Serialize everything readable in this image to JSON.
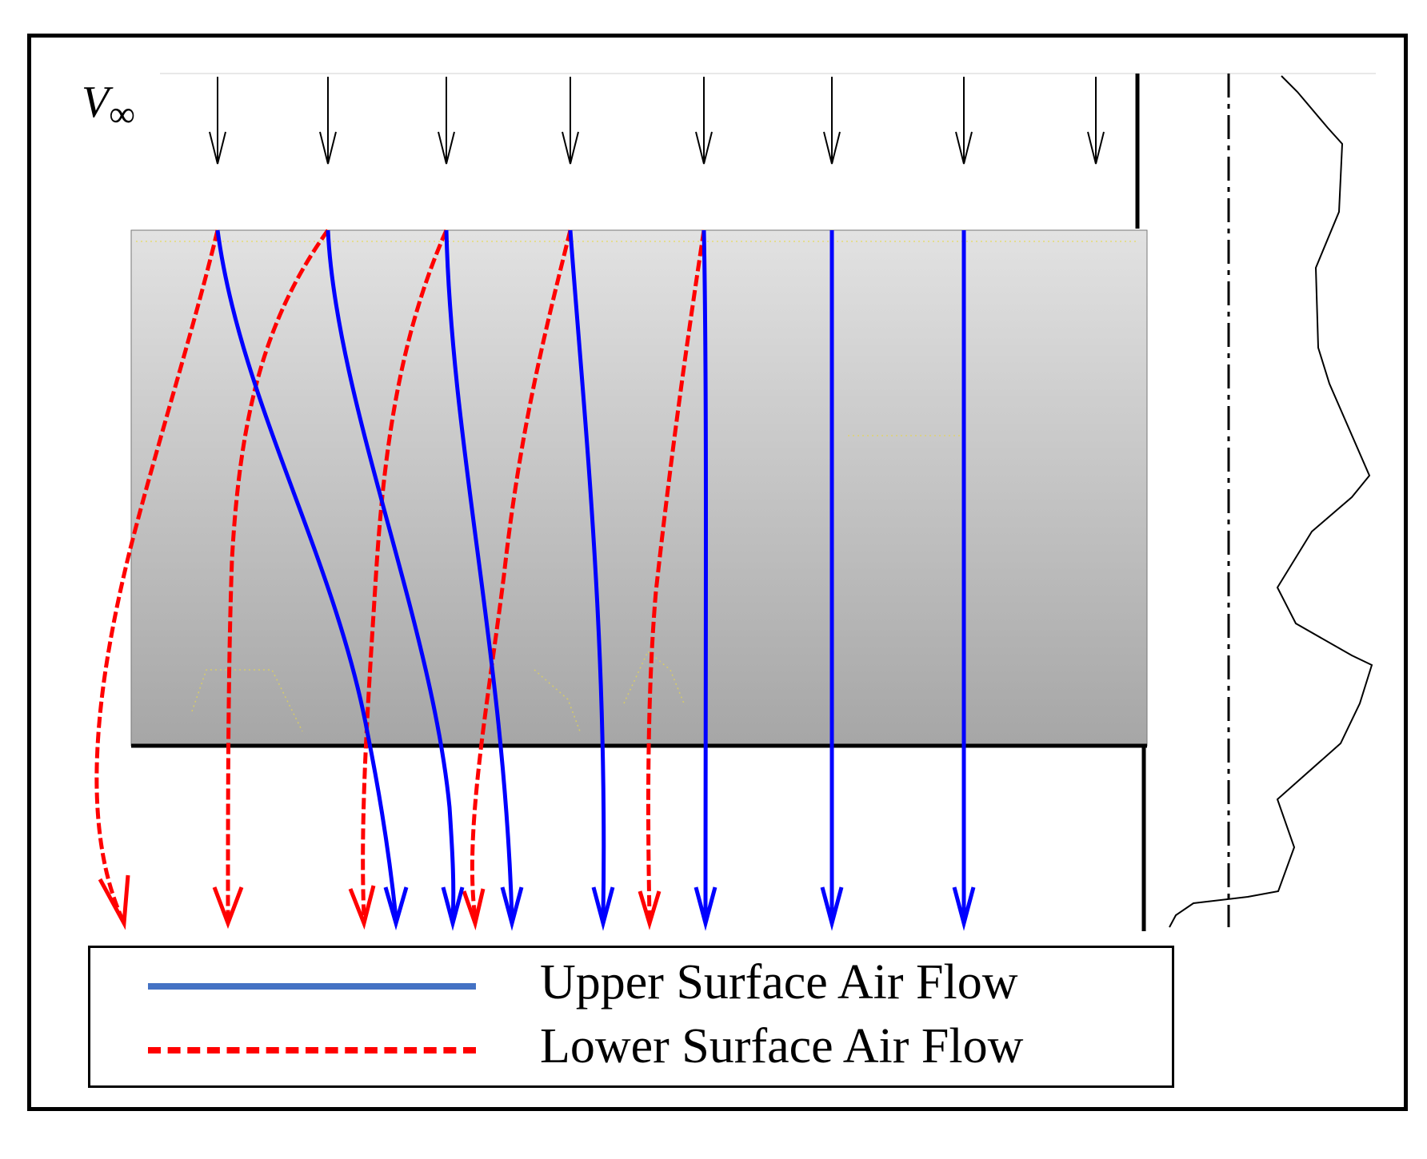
{
  "freestream_label": "V",
  "freestream_subscript": "∞",
  "legend": {
    "upper_label": "Upper Surface Air Flow",
    "lower_label": "Lower Surface Air Flow",
    "upper_color": "#4472C4",
    "lower_color": "#ff0000"
  },
  "colors": {
    "upper_streamline": "#0000ff",
    "lower_streamline": "#ff0000",
    "surface_gradient_top": "#e0e0e0",
    "surface_gradient_bottom": "#a8a8a8"
  }
}
